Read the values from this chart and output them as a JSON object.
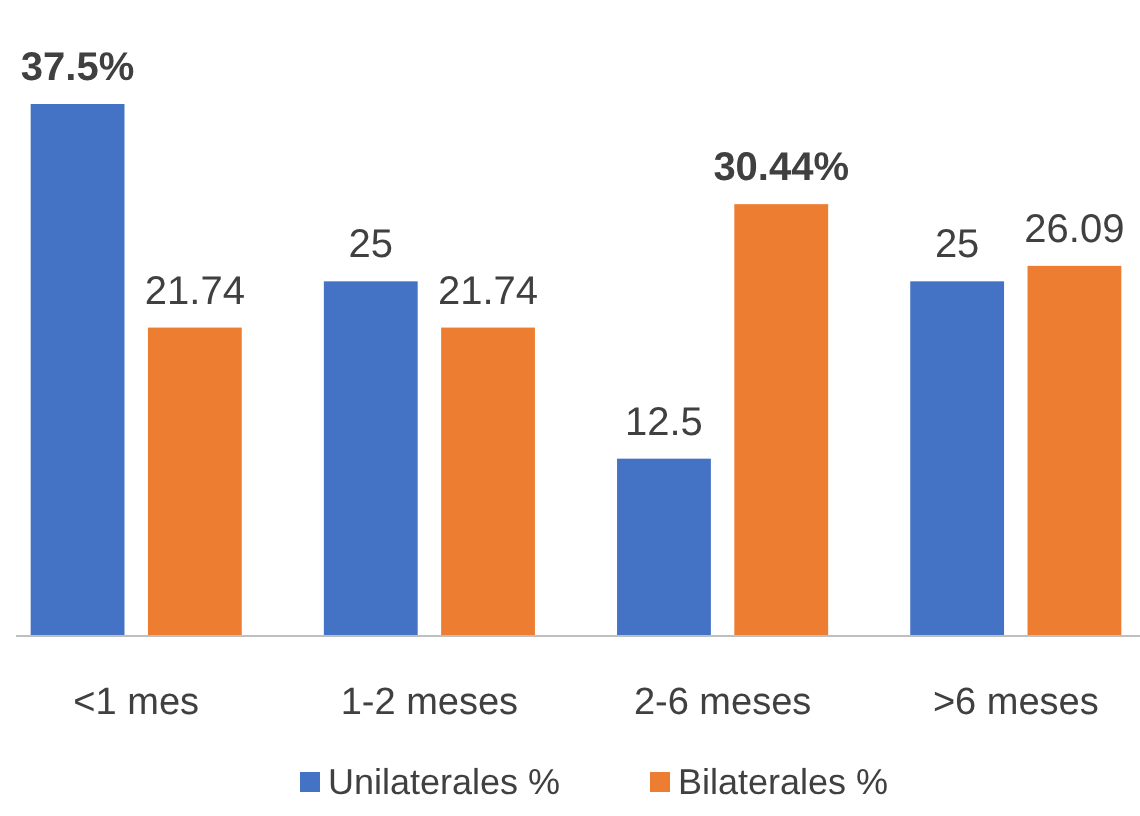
{
  "chart_data": {
    "type": "bar",
    "categories": [
      "<1 mes",
      "1-2 meses",
      "2-6 meses",
      ">6 meses"
    ],
    "series": [
      {
        "name": "Unilaterales %",
        "color": "#4472c4",
        "values": [
          37.5,
          25,
          12.5,
          25
        ],
        "value_labels": [
          "37.5%",
          "25",
          "12.5",
          "25"
        ]
      },
      {
        "name": "Bilaterales %",
        "color": "#ed7d31",
        "values": [
          21.74,
          21.74,
          30.44,
          26.09
        ],
        "value_labels": [
          "21.74",
          "21.74",
          "30.44%",
          "26.09"
        ]
      }
    ],
    "legend": "bottom"
  }
}
